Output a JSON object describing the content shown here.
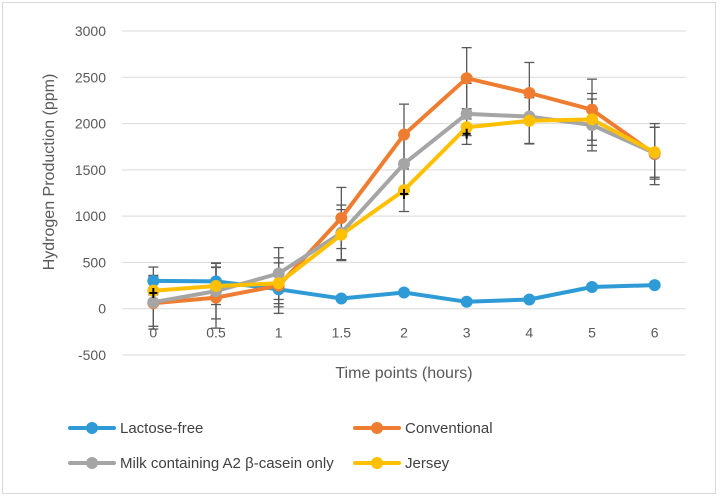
{
  "chart_data": {
    "type": "line",
    "title": "",
    "xlabel": "Time points (hours)",
    "ylabel": "Hydrogen Production (ppm)",
    "categories": [
      "0",
      "0.5",
      "1",
      "1.5",
      "2",
      "3",
      "4",
      "5",
      "6"
    ],
    "ylim": [
      -500,
      3000
    ],
    "yticks": [
      -500,
      0,
      500,
      1000,
      1500,
      2000,
      2500,
      3000
    ],
    "ytick_labels": [
      "-500",
      "0",
      "500",
      "1000",
      "1500",
      "2000",
      "2500",
      "3000"
    ],
    "grid": true,
    "legend_position": "bottom",
    "series": [
      {
        "name": "Lactose-free",
        "color": "#2e9bd6",
        "values": [
          300,
          295,
          210,
          110,
          175,
          75,
          100,
          235,
          255
        ],
        "errors": [
          150,
          200,
          190,
          0,
          0,
          0,
          0,
          0,
          0
        ]
      },
      {
        "name": "Conventional",
        "color": "#ee7d31",
        "values": [
          60,
          120,
          250,
          980,
          1880,
          2490,
          2330,
          2150,
          1670
        ],
        "errors": [
          250,
          330,
          300,
          330,
          330,
          330,
          330,
          330,
          330
        ]
      },
      {
        "name": "Milk containing A2 β-casein only",
        "color": "#a5a5a5",
        "values": [
          70,
          190,
          380,
          820,
          1565,
          2105,
          2075,
          1985,
          1680
        ],
        "errors": [
          290,
          300,
          280,
          300,
          330,
          330,
          290,
          280,
          280
        ]
      },
      {
        "name": "Jersey",
        "color": "#fec000",
        "values": [
          195,
          245,
          275,
          800,
          1280,
          1960,
          2030,
          2045,
          1690
        ],
        "errors": [
          150,
          200,
          220,
          270,
          230,
          90,
          250,
          280,
          270
        ]
      }
    ],
    "markers": [
      {
        "series": "Jersey",
        "category": "0",
        "value": 170
      },
      {
        "series": "Jersey",
        "category": "2",
        "value": 1240
      },
      {
        "series": "Jersey",
        "category": "3",
        "value": 1890
      }
    ]
  }
}
